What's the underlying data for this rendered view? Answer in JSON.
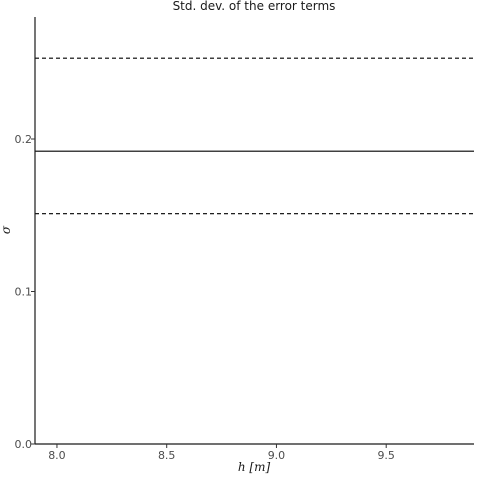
{
  "chart_data": {
    "type": "line",
    "title": "Std. dev. of the error terms",
    "xlabel": "h [m]",
    "ylabel": "σ",
    "xlim": [
      7.9,
      9.9
    ],
    "ylim": [
      0.0,
      0.28
    ],
    "xticks": [
      8.0,
      8.5,
      9.0,
      9.5
    ],
    "xtick_labels": [
      "8.0",
      "8.5",
      "9.0",
      "9.5"
    ],
    "yticks": [
      0.0,
      0.1,
      0.2
    ],
    "ytick_labels": [
      "0.0",
      "0.1",
      "0.2"
    ],
    "grid": false,
    "series": [
      {
        "style": "solid",
        "x": [
          7.9,
          9.9
        ],
        "y": [
          0.192,
          0.192
        ]
      },
      {
        "style": "dashed",
        "x": [
          7.9,
          9.9
        ],
        "y": [
          0.253,
          0.253
        ]
      },
      {
        "style": "dashed",
        "x": [
          7.9,
          9.9
        ],
        "y": [
          0.151,
          0.151
        ]
      }
    ]
  }
}
